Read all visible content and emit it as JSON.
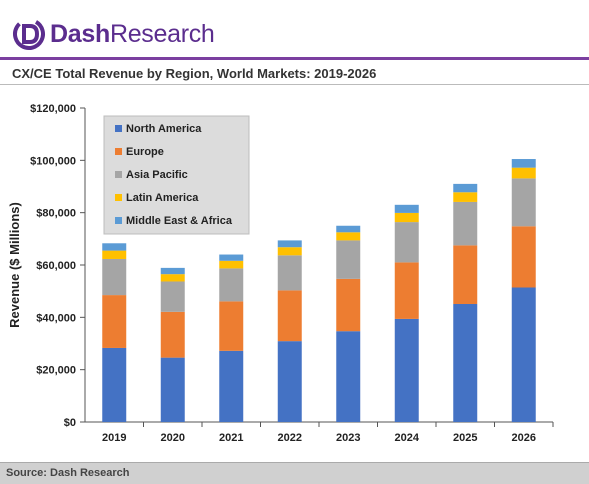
{
  "header": {
    "logo_text_bold": "Dash",
    "logo_text_regular": "Research",
    "logo_icon": "dash-research-logo-icon"
  },
  "colors": {
    "brand": "#5b2d8e",
    "rule": "#7b3fa0",
    "north_america": "#4472c4",
    "europe": "#ed7d31",
    "asia_pacific": "#a5a5a5",
    "latin_america": "#ffc000",
    "mea": "#5b9bd5"
  },
  "chart_data": {
    "type": "bar",
    "stacked": true,
    "title": "CX/CE Total Revenue by Region, World Markets: 2019-2026",
    "xlabel": "",
    "ylabel": "Revenue ($ Millions)",
    "ylim": [
      0,
      120000
    ],
    "yticks": [
      "$0",
      "$20,000",
      "$40,000",
      "$60,000",
      "$80,000",
      "$100,000",
      "$120,000"
    ],
    "categories": [
      "2019",
      "2020",
      "2021",
      "2022",
      "2023",
      "2024",
      "2025",
      "2026"
    ],
    "legend_position": "top-left",
    "series": [
      {
        "name": "North America",
        "color": "#4472c4",
        "values": [
          28300,
          24600,
          27200,
          30900,
          34700,
          39400,
          45100,
          51400
        ]
      },
      {
        "name": "Europe",
        "color": "#ed7d31",
        "values": [
          20200,
          17500,
          18900,
          19400,
          20000,
          21600,
          22400,
          23400
        ]
      },
      {
        "name": "Asia Pacific",
        "color": "#a5a5a5",
        "values": [
          13800,
          11600,
          12600,
          13400,
          14700,
          15400,
          16600,
          18300
        ]
      },
      {
        "name": "Latin America",
        "color": "#ffc000",
        "values": [
          3200,
          2800,
          2900,
          3100,
          3100,
          3500,
          3700,
          4100
        ]
      },
      {
        "name": "Middle East & Africa",
        "color": "#5b9bd5",
        "values": [
          2800,
          2400,
          2400,
          2600,
          2500,
          3100,
          3200,
          3300
        ]
      }
    ]
  },
  "footer": {
    "source": "Source: Dash Research"
  }
}
